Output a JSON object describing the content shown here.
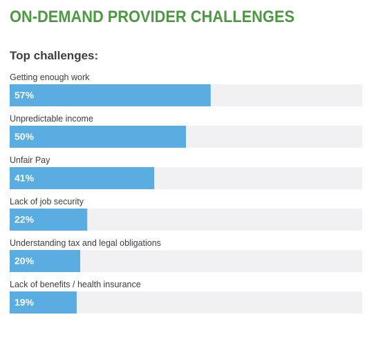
{
  "chart_data": {
    "type": "bar",
    "orientation": "horizontal",
    "title": "ON-DEMAND PROVIDER CHALLENGES",
    "subtitle": "Top challenges:",
    "categories": [
      "Getting enough work",
      "Unpredictable income",
      "Unfair Pay",
      "Lack of job security",
      "Understanding tax and legal obligations",
      "Lack of benefits / health insurance"
    ],
    "values": [
      57,
      50,
      41,
      22,
      20,
      19
    ],
    "value_labels": [
      "57%",
      "50%",
      "41%",
      "22%",
      "20%",
      "19%"
    ],
    "color": "#5aade0",
    "xlim": [
      0,
      100
    ]
  }
}
